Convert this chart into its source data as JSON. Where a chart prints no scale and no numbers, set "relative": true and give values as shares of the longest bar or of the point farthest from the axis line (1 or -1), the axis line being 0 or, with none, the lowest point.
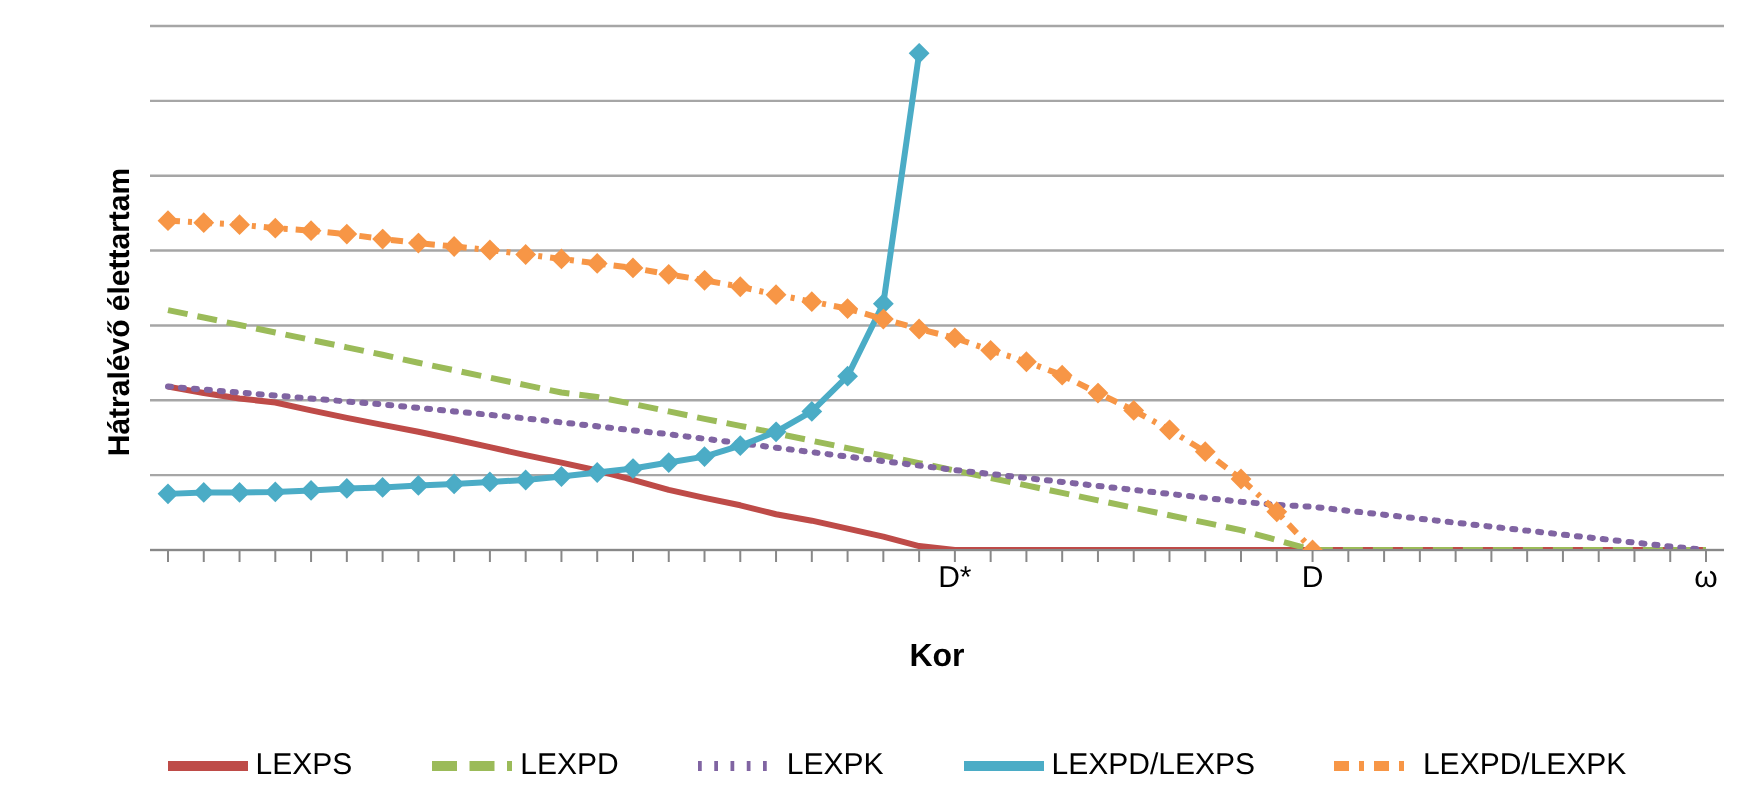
{
  "chart_data": {
    "type": "line",
    "relative": true,
    "xlabel": "Kor",
    "ylabel": "Hátralévő élettartam",
    "categories": [
      null,
      null,
      null,
      null,
      null,
      null,
      null,
      null,
      null,
      null,
      null,
      null,
      null,
      null,
      null,
      null,
      null,
      null,
      null,
      null,
      null,
      null,
      "D*",
      null,
      null,
      null,
      null,
      null,
      null,
      null,
      null,
      null,
      "D",
      null,
      null,
      null,
      null,
      null,
      null,
      null,
      null,
      null,
      null,
      "ω"
    ],
    "grid": "y",
    "legend": "bottom",
    "series": [
      {
        "name": "LEXPS",
        "color": "#be4b48",
        "line_style": "solid",
        "marker": "none",
        "values": [
          0.329,
          0.316,
          0.305,
          0.297,
          0.281,
          0.266,
          0.252,
          0.238,
          0.223,
          0.207,
          0.191,
          0.176,
          0.16,
          0.141,
          0.121,
          0.105,
          0.09,
          0.072,
          0.059,
          0.043,
          0.027,
          0.008,
          0,
          0,
          0,
          0,
          0,
          0,
          0,
          0,
          0,
          0,
          0,
          0,
          0,
          0,
          0,
          0,
          0,
          0,
          0,
          0,
          0,
          0
        ]
      },
      {
        "name": "LEXPD",
        "color": "#9bbb59",
        "line_style": "dashed",
        "marker": "none",
        "values": [
          0.483,
          0.468,
          0.453,
          0.438,
          0.423,
          0.408,
          0.393,
          0.377,
          0.362,
          0.347,
          0.332,
          0.317,
          0.308,
          0.294,
          0.279,
          0.264,
          0.25,
          0.235,
          0.22,
          0.205,
          0.19,
          0.175,
          0.16,
          0.145,
          0.13,
          0.115,
          0.1,
          0.085,
          0.07,
          0.055,
          0.04,
          0.02,
          0,
          0,
          0,
          0,
          0,
          0,
          0,
          0,
          0,
          0,
          0,
          0
        ]
      },
      {
        "name": "LEXPK",
        "color": "#8064a2",
        "line_style": "dotted",
        "marker": "none",
        "values": [
          0.329,
          0.323,
          0.317,
          0.311,
          0.305,
          0.299,
          0.293,
          0.286,
          0.279,
          0.272,
          0.265,
          0.257,
          0.249,
          0.241,
          0.233,
          0.224,
          0.215,
          0.206,
          0.197,
          0.188,
          0.179,
          0.17,
          0.161,
          0.153,
          0.145,
          0.137,
          0.129,
          0.121,
          0.113,
          0.105,
          0.097,
          0.091,
          0.087,
          0.079,
          0.071,
          0.063,
          0.055,
          0.047,
          0.039,
          0.031,
          0.023,
          0.015,
          0.007,
          0
        ]
      },
      {
        "name": "LEXPD/LEXPS",
        "color": "#4bacc6",
        "line_style": "solid",
        "marker": "diamond",
        "values": [
          0.113,
          0.116,
          0.116,
          0.117,
          0.12,
          0.124,
          0.126,
          0.13,
          0.133,
          0.137,
          0.141,
          0.148,
          0.156,
          0.164,
          0.176,
          0.188,
          0.21,
          0.238,
          0.279,
          0.35,
          0.496,
          1,
          null,
          null,
          null,
          null,
          null,
          null,
          null,
          null,
          null,
          null,
          null,
          null,
          null,
          null,
          null,
          null,
          null,
          null,
          null,
          null,
          null,
          null
        ]
      },
      {
        "name": "LEXPD/LEXPK",
        "color": "#f79646",
        "line_style": "dashed",
        "marker": "diamond",
        "values": [
          0.663,
          0.659,
          0.655,
          0.648,
          0.643,
          0.636,
          0.626,
          0.618,
          0.611,
          0.604,
          0.595,
          0.586,
          0.577,
          0.568,
          0.555,
          0.543,
          0.53,
          0.514,
          0.5,
          0.486,
          0.465,
          0.445,
          0.427,
          0.402,
          0.379,
          0.352,
          0.316,
          0.281,
          0.242,
          0.198,
          0.143,
          0.077,
          0,
          null,
          null,
          null,
          null,
          null,
          null,
          null,
          null,
          null,
          null,
          null
        ]
      }
    ]
  }
}
